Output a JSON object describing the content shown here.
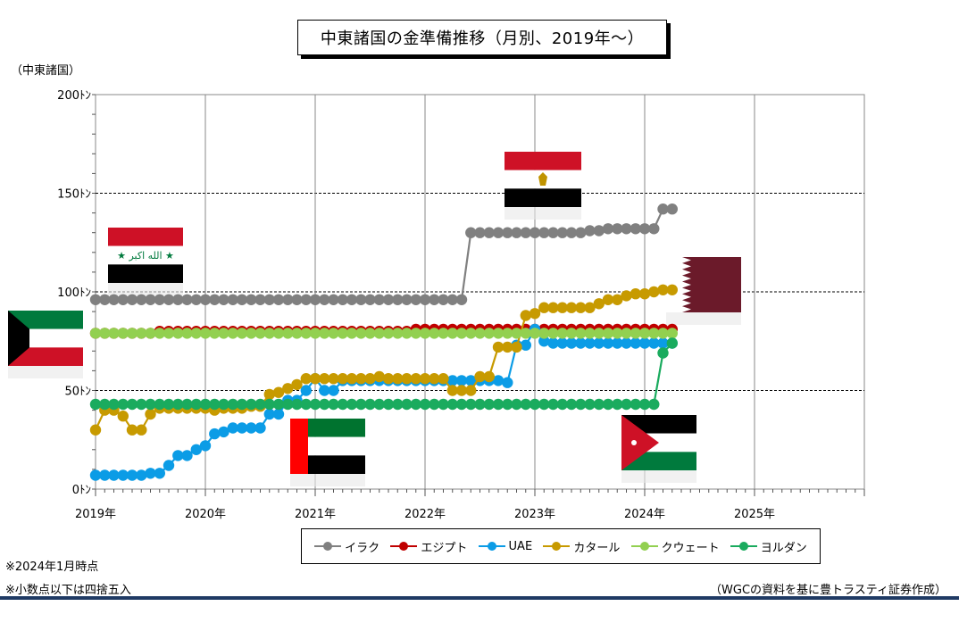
{
  "title": "中東諸国の金準備推移（月別、2019年～）",
  "ylabel": "（中東諸国）",
  "notes": [
    "※2024年1月時点",
    "※小数点以下は四捨五入"
  ],
  "source": "（WGCの資料を基に豊トラスティ証券作成）",
  "chart_data": {
    "type": "line",
    "title": "中東諸国の金準備推移（月別、2019年～）",
    "ylabel": "（中東諸国）",
    "xlabel": "",
    "ylim": [
      0,
      200
    ],
    "y_ticks": [
      "0ﾄﾝ",
      "50ﾄﾝ",
      "100ﾄﾝ",
      "150ﾄﾝ",
      "200ﾄﾝ"
    ],
    "y_tick_values": [
      0,
      50,
      100,
      150,
      200
    ],
    "x_ticks": [
      "2019年",
      "2020年",
      "2021年",
      "2022年",
      "2023年",
      "2024年",
      "2025年"
    ],
    "x_range_months": [
      0,
      84
    ],
    "grid": true,
    "legend_position": "bottom",
    "series": [
      {
        "name": "イラク",
        "color": "#808080",
        "values": [
          96,
          96,
          96,
          96,
          96,
          96,
          96,
          96,
          96,
          96,
          96,
          96,
          96,
          96,
          96,
          96,
          96,
          96,
          96,
          96,
          96,
          96,
          96,
          96,
          96,
          96,
          96,
          96,
          96,
          96,
          96,
          96,
          96,
          96,
          96,
          96,
          96,
          96,
          96,
          96,
          96,
          130,
          130,
          130,
          130,
          130,
          130,
          130,
          130,
          130,
          130,
          130,
          130,
          130,
          131,
          131,
          132,
          132,
          132,
          132,
          132,
          132,
          142,
          142
        ]
      },
      {
        "name": "エジプト",
        "color": "#c00000",
        "values": [
          79,
          79,
          79,
          79,
          79,
          79,
          79,
          80,
          80,
          80,
          80,
          80,
          80,
          80,
          80,
          80,
          80,
          80,
          80,
          80,
          80,
          80,
          80,
          80,
          80,
          80,
          80,
          80,
          80,
          80,
          80,
          80,
          80,
          80,
          80,
          81,
          81,
          81,
          81,
          81,
          81,
          81,
          81,
          81,
          81,
          81,
          81,
          81,
          81,
          81,
          81,
          81,
          81,
          81,
          81,
          81,
          81,
          81,
          81,
          81,
          81,
          81,
          81,
          81
        ]
      },
      {
        "name": "UAE",
        "color": "#0b9ce6",
        "values": [
          7,
          7,
          7,
          7,
          7,
          7,
          8,
          8,
          12,
          17,
          17,
          20,
          22,
          28,
          29,
          31,
          31,
          31,
          31,
          38,
          38,
          45,
          45,
          50,
          56,
          50,
          50,
          55,
          55,
          55,
          55,
          55,
          55,
          55,
          55,
          55,
          55,
          55,
          55,
          55,
          55,
          55,
          55,
          55,
          55,
          54,
          73,
          73,
          81,
          75,
          74,
          74,
          74,
          74,
          74,
          74,
          74,
          74,
          74,
          74,
          74,
          74,
          74,
          74
        ]
      },
      {
        "name": "カタール",
        "color": "#c79a00",
        "values": [
          30,
          40,
          40,
          37,
          30,
          30,
          38,
          41,
          41,
          41,
          41,
          41,
          41,
          40,
          41,
          41,
          41,
          42,
          42,
          48,
          49,
          51,
          53,
          56,
          56,
          56,
          56,
          56,
          56,
          56,
          56,
          57,
          56,
          56,
          56,
          56,
          56,
          56,
          56,
          50,
          50,
          50,
          57,
          57,
          72,
          72,
          72,
          88,
          89,
          92,
          92,
          92,
          92,
          92,
          92,
          94,
          96,
          96,
          98,
          99,
          99,
          100,
          101,
          101
        ]
      },
      {
        "name": "クウェート",
        "color": "#92d050",
        "values": [
          79,
          79,
          79,
          79,
          79,
          79,
          79,
          79,
          79,
          79,
          79,
          79,
          79,
          79,
          79,
          79,
          79,
          79,
          79,
          79,
          79,
          79,
          79,
          79,
          79,
          79,
          79,
          79,
          79,
          79,
          79,
          79,
          79,
          79,
          79,
          79,
          79,
          79,
          79,
          79,
          79,
          79,
          79,
          79,
          79,
          79,
          79,
          79,
          79,
          79,
          79,
          79,
          79,
          79,
          79,
          79,
          79,
          79,
          79,
          79,
          79,
          79,
          79,
          79
        ]
      },
      {
        "name": "ヨルダン",
        "color": "#1aab5e",
        "values": [
          43,
          43,
          43,
          43,
          43,
          43,
          43,
          43,
          43,
          43,
          43,
          43,
          43,
          43,
          43,
          43,
          43,
          43,
          43,
          43,
          43,
          43,
          43,
          43,
          43,
          43,
          43,
          43,
          43,
          43,
          43,
          43,
          43,
          43,
          43,
          43,
          43,
          43,
          43,
          43,
          43,
          43,
          43,
          43,
          43,
          43,
          43,
          43,
          43,
          43,
          43,
          43,
          43,
          43,
          43,
          43,
          43,
          43,
          43,
          43,
          43,
          43,
          69,
          74
        ]
      }
    ]
  },
  "flags": [
    {
      "country": "クウェート",
      "icon": "kuwait-flag"
    },
    {
      "country": "イラク",
      "icon": "iraq-flag",
      "text": "★ الله اكبر ★"
    },
    {
      "country": "エジプト",
      "icon": "egypt-flag"
    },
    {
      "country": "カタール",
      "icon": "qatar-flag"
    },
    {
      "country": "UAE",
      "icon": "uae-flag"
    },
    {
      "country": "ヨルダン",
      "icon": "jordan-flag"
    }
  ]
}
